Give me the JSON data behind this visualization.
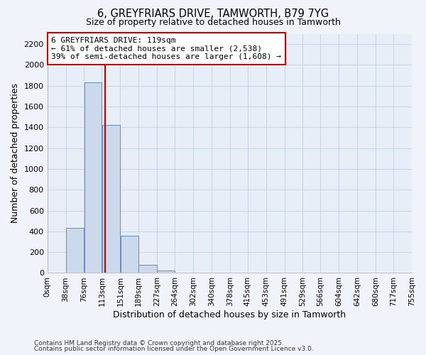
{
  "title": "6, GREYFRIARS DRIVE, TAMWORTH, B79 7YG",
  "subtitle": "Size of property relative to detached houses in Tamworth",
  "xlabel": "Distribution of detached houses by size in Tamworth",
  "ylabel": "Number of detached properties",
  "annotation_line1": "6 GREYFRIARS DRIVE: 119sqm",
  "annotation_line2": "← 61% of detached houses are smaller (2,538)",
  "annotation_line3": "39% of semi-detached houses are larger (1,608) →",
  "footnote1": "Contains HM Land Registry data © Crown copyright and database right 2025.",
  "footnote2": "Contains public sector information licensed under the Open Government Licence v3.0.",
  "bar_edges": [
    0,
    38,
    76,
    113,
    151,
    189,
    227,
    264,
    302,
    340,
    378,
    415,
    453,
    491,
    529,
    566,
    604,
    642,
    680,
    717,
    755
  ],
  "bar_labels": [
    "0sqm",
    "38sqm",
    "76sqm",
    "113sqm",
    "151sqm",
    "189sqm",
    "227sqm",
    "264sqm",
    "302sqm",
    "340sqm",
    "378sqm",
    "415sqm",
    "453sqm",
    "491sqm",
    "529sqm",
    "566sqm",
    "604sqm",
    "642sqm",
    "680sqm",
    "717sqm",
    "755sqm"
  ],
  "bar_heights": [
    0,
    430,
    1830,
    1420,
    355,
    80,
    25,
    5,
    2,
    1,
    0,
    0,
    0,
    0,
    0,
    0,
    0,
    0,
    0,
    0
  ],
  "bar_color": "#ccd9ec",
  "bar_edge_color": "#5b8fc9",
  "property_line_x": 119,
  "property_line_color": "#cc0000",
  "annotation_box_color": "#cc0000",
  "ylim": [
    0,
    2300
  ],
  "yticks": [
    0,
    200,
    400,
    600,
    800,
    1000,
    1200,
    1400,
    1600,
    1800,
    2000,
    2200
  ],
  "background_color": "#f0f4fa",
  "plot_bg_color": "#e8eef8",
  "grid_color": "#c8d4e8"
}
